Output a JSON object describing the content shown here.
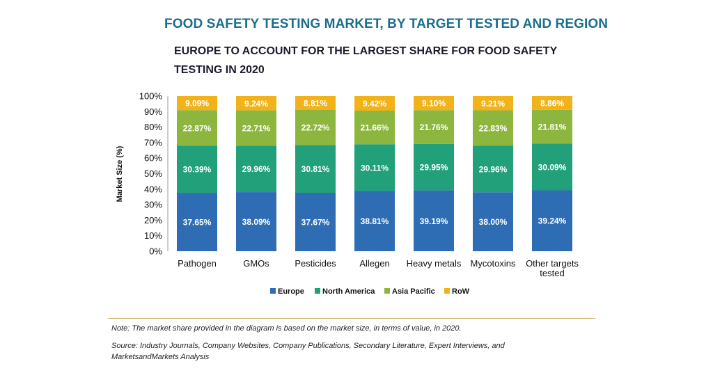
{
  "title": "FOOD SAFETY TESTING MARKET, BY TARGET TESTED AND REGION",
  "subtitle": "EUROPE TO ACCOUNT FOR THE LARGEST SHARE FOR FOOD SAFETY TESTING IN 2020",
  "note": "Note: The market share provided in the diagram is based on the market size, in terms of value, in 2020.",
  "source": "Source: Industry Journals, Company Websites, Company Publications, Secondary Literature, Expert Interviews, and MarketsandMarkets Analysis",
  "chart_data": {
    "type": "bar",
    "stacked": true,
    "title": "FOOD SAFETY TESTING MARKET, BY TARGET TESTED AND REGION",
    "ylabel": "Market Size (%)",
    "xlabel": "",
    "ylim": [
      0,
      100
    ],
    "yticks": [
      "0%",
      "10%",
      "20%",
      "30%",
      "40%",
      "50%",
      "60%",
      "70%",
      "80%",
      "90%",
      "100%"
    ],
    "categories": [
      [
        "Pathogen"
      ],
      [
        "GMOs"
      ],
      [
        "Pesticides"
      ],
      [
        "Allegen"
      ],
      [
        "Heavy metals"
      ],
      [
        "Mycotoxins"
      ],
      [
        "Other targets",
        "tested"
      ]
    ],
    "series": [
      {
        "name": "Europe",
        "color": "#2e6db4",
        "values": [
          37.65,
          38.09,
          37.67,
          38.81,
          39.19,
          38.0,
          39.24
        ],
        "labels": [
          "37.65%",
          "38.09%",
          "37.67%",
          "38.81%",
          "39.19%",
          "38.00%",
          "39.24%"
        ]
      },
      {
        "name": "North America",
        "color": "#22a07a",
        "values": [
          30.39,
          29.96,
          30.81,
          30.11,
          29.95,
          29.96,
          30.09
        ],
        "labels": [
          "30.39%",
          "29.96%",
          "30.81%",
          "30.11%",
          "29.95%",
          "29.96%",
          "30.09%"
        ]
      },
      {
        "name": "Asia Pacific",
        "color": "#8db63f",
        "values": [
          22.87,
          22.71,
          22.72,
          21.66,
          21.76,
          22.83,
          21.81
        ],
        "labels": [
          "22.87%",
          "22.71%",
          "22.72%",
          "21.66%",
          "21.76%",
          "22.83%",
          "21.81%"
        ]
      },
      {
        "name": "RoW",
        "color": "#f2b219",
        "values": [
          9.09,
          9.24,
          8.81,
          9.42,
          9.1,
          9.21,
          8.86
        ],
        "labels": [
          "9.09%",
          "9.24%",
          "8.81%",
          "9.42%",
          "9.10%",
          "9.21%",
          "8.86%"
        ]
      }
    ],
    "legend_position": "bottom",
    "grid": false
  }
}
